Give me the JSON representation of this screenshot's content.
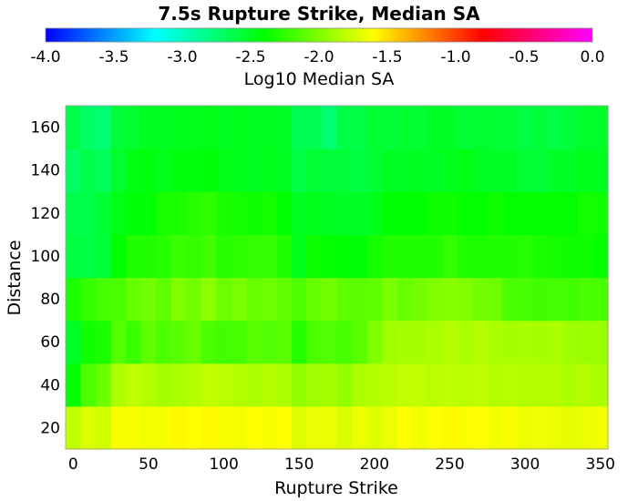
{
  "chart_data": {
    "type": "heatmap",
    "title": "7.5s Rupture Strike, Median SA",
    "xlabel": "Rupture Strike",
    "ylabel": "Distance",
    "colorbar": {
      "label": "Log10 Median SA",
      "range": [
        -4.0,
        0.0
      ],
      "ticks": [
        "-4.0",
        "-3.5",
        "-3.0",
        "-2.5",
        "-2.0",
        "-1.5",
        "-1.0",
        "-0.5",
        "0.0"
      ],
      "palette": [
        "#0000ff",
        "#00ffff",
        "#00ff00",
        "#ffff00",
        "#ff0000",
        "#ff00ff"
      ],
      "placement": "top"
    },
    "x_ticks": [
      "0",
      "50",
      "100",
      "150",
      "200",
      "250",
      "300",
      "350"
    ],
    "y_ticks": [
      "20",
      "40",
      "60",
      "80",
      "100",
      "120",
      "140",
      "160"
    ],
    "xlim": [
      -5,
      355
    ],
    "ylim": [
      10,
      170
    ],
    "x_bins": [
      0,
      10,
      20,
      30,
      40,
      50,
      60,
      70,
      80,
      90,
      100,
      110,
      120,
      130,
      140,
      150,
      160,
      170,
      180,
      190,
      200,
      210,
      220,
      230,
      240,
      250,
      260,
      270,
      280,
      290,
      300,
      310,
      320,
      330,
      340,
      350
    ],
    "y_bins": [
      20,
      40,
      60,
      80,
      100,
      120,
      140,
      160
    ],
    "x_bin_width": 10,
    "y_bin_width": 20,
    "values": [
      [
        -1.8,
        -1.72,
        -1.74,
        -1.62,
        -1.62,
        -1.64,
        -1.62,
        -1.58,
        -1.6,
        -1.58,
        -1.62,
        -1.64,
        -1.6,
        -1.62,
        -1.6,
        -1.7,
        -1.66,
        -1.66,
        -1.72,
        -1.66,
        -1.7,
        -1.66,
        -1.6,
        -1.64,
        -1.6,
        -1.58,
        -1.62,
        -1.6,
        -1.64,
        -1.62,
        -1.66,
        -1.64,
        -1.66,
        -1.68,
        -1.66,
        -1.64
      ],
      [
        -2.4,
        -2.16,
        -2.06,
        -1.86,
        -1.8,
        -1.84,
        -1.88,
        -1.86,
        -1.84,
        -1.8,
        -1.82,
        -1.84,
        -1.86,
        -1.84,
        -1.86,
        -1.94,
        -1.9,
        -1.88,
        -1.94,
        -1.86,
        -1.84,
        -1.82,
        -1.8,
        -1.8,
        -1.82,
        -1.8,
        -1.82,
        -1.8,
        -1.84,
        -1.82,
        -1.84,
        -1.84,
        -1.84,
        -1.86,
        -1.84,
        -1.86
      ],
      [
        -2.52,
        -2.36,
        -2.32,
        -2.14,
        -2.22,
        -2.1,
        -2.16,
        -2.12,
        -2.08,
        -2.16,
        -2.2,
        -2.18,
        -2.12,
        -2.14,
        -2.12,
        -2.28,
        -2.16,
        -2.14,
        -2.18,
        -2.12,
        -2.0,
        -1.9,
        -1.88,
        -1.88,
        -1.86,
        -1.84,
        -1.86,
        -1.84,
        -1.86,
        -1.88,
        -1.86,
        -1.88,
        -1.86,
        -1.9,
        -1.92,
        -1.92
      ],
      [
        -2.32,
        -2.24,
        -2.18,
        -2.16,
        -2.08,
        -2.04,
        -2.1,
        -2.0,
        -2.04,
        -1.96,
        -2.06,
        -2.02,
        -2.08,
        -2.06,
        -2.1,
        -2.16,
        -2.08,
        -2.04,
        -2.1,
        -2.12,
        -2.1,
        -2.02,
        -2.08,
        -2.04,
        -2.0,
        -1.98,
        -2.0,
        -2.04,
        -2.06,
        -2.16,
        -2.18,
        -2.2,
        -2.18,
        -2.2,
        -2.16,
        -2.18
      ],
      [
        -2.6,
        -2.6,
        -2.58,
        -2.4,
        -2.3,
        -2.3,
        -2.28,
        -2.22,
        -2.24,
        -2.2,
        -2.28,
        -2.26,
        -2.24,
        -2.24,
        -2.3,
        -2.48,
        -2.36,
        -2.4,
        -2.4,
        -2.42,
        -2.34,
        -2.3,
        -2.3,
        -2.3,
        -2.3,
        -2.24,
        -2.3,
        -2.32,
        -2.3,
        -2.3,
        -2.28,
        -2.32,
        -2.34,
        -2.36,
        -2.36,
        -2.38
      ],
      [
        -2.64,
        -2.62,
        -2.56,
        -2.46,
        -2.42,
        -2.42,
        -2.32,
        -2.32,
        -2.28,
        -2.26,
        -2.32,
        -2.34,
        -2.36,
        -2.34,
        -2.4,
        -2.5,
        -2.48,
        -2.5,
        -2.52,
        -2.52,
        -2.48,
        -2.4,
        -2.4,
        -2.4,
        -2.36,
        -2.36,
        -2.38,
        -2.4,
        -2.36,
        -2.4,
        -2.38,
        -2.4,
        -2.38,
        -2.4,
        -2.34,
        -2.36
      ],
      [
        -2.7,
        -2.64,
        -2.68,
        -2.54,
        -2.46,
        -2.44,
        -2.48,
        -2.44,
        -2.44,
        -2.42,
        -2.46,
        -2.48,
        -2.5,
        -2.48,
        -2.5,
        -2.62,
        -2.56,
        -2.58,
        -2.58,
        -2.6,
        -2.56,
        -2.5,
        -2.52,
        -2.5,
        -2.52,
        -2.48,
        -2.46,
        -2.5,
        -2.52,
        -2.52,
        -2.56,
        -2.58,
        -2.52,
        -2.52,
        -2.48,
        -2.5
      ],
      [
        -2.62,
        -2.72,
        -2.76,
        -2.58,
        -2.54,
        -2.5,
        -2.5,
        -2.48,
        -2.48,
        -2.46,
        -2.5,
        -2.48,
        -2.5,
        -2.5,
        -2.52,
        -2.66,
        -2.66,
        -2.76,
        -2.62,
        -2.62,
        -2.56,
        -2.58,
        -2.54,
        -2.56,
        -2.52,
        -2.52,
        -2.56,
        -2.54,
        -2.56,
        -2.58,
        -2.6,
        -2.58,
        -2.62,
        -2.58,
        -2.54,
        -2.52
      ]
    ]
  }
}
